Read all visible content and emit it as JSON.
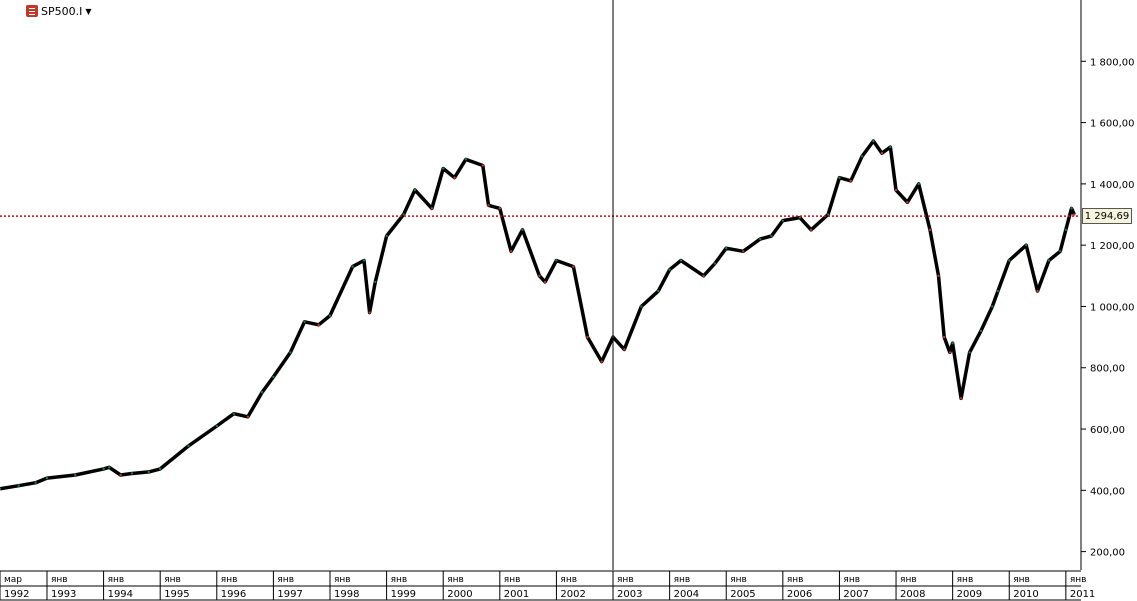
{
  "header": {
    "symbol": "SP500.I",
    "dropdown_icon": "caret-down-icon",
    "symbol_icon": "instrument-icon"
  },
  "current_price_label": "1 294,69",
  "colors": {
    "line": "#000000",
    "down": "#c0392b",
    "up": "#1e7d3a",
    "price_line": "#e00000",
    "axis": "#000000",
    "label_bg": "#f4f4dc"
  },
  "chart_data": {
    "type": "line",
    "title": "SP500.I",
    "xlabel": "",
    "ylabel": "",
    "ylim": [
      140,
      2000
    ],
    "xlim": [
      1992.17,
      2011.25
    ],
    "y_ticks": [
      200,
      400,
      600,
      800,
      1000,
      1200,
      1400,
      1600,
      1800
    ],
    "y_tick_labels": [
      "200,00",
      "400,00",
      "600,00",
      "800,00",
      "1 000,00",
      "1 200,00",
      "1 400,00",
      "1 600,00",
      "1 800,00"
    ],
    "x_month_labels": [
      "мар",
      "янв",
      "янв",
      "янв",
      "янв",
      "янв",
      "янв",
      "янв",
      "янв",
      "янв",
      "янв",
      "янв",
      "янв",
      "янв",
      "янв",
      "янв",
      "янв",
      "янв",
      "янв",
      "янв"
    ],
    "x_year_labels": [
      "1992",
      "1993",
      "1994",
      "1995",
      "1996",
      "1997",
      "1998",
      "1999",
      "2000",
      "2001",
      "2002",
      "2003",
      "2004",
      "2005",
      "2006",
      "2007",
      "2008",
      "2009",
      "2010",
      "2011"
    ],
    "current_price": 1294.69,
    "crosshair_x": 2003.0,
    "series": [
      {
        "x": [
          1992.17,
          1992.5,
          1992.8,
          1993.0,
          1993.5,
          1994.0,
          1994.1,
          1994.3,
          1994.5,
          1994.8,
          1995.0,
          1995.5,
          1996.0,
          1996.3,
          1996.55,
          1996.8,
          1997.0,
          1997.3,
          1997.55,
          1997.8,
          1998.0,
          1998.4,
          1998.6,
          1998.7,
          1998.8,
          1999.0,
          1999.3,
          1999.5,
          1999.8,
          2000.0,
          2000.2,
          2000.4,
          2000.7,
          2000.8,
          2001.0,
          2001.2,
          2001.4,
          2001.7,
          2001.8,
          2002.0,
          2002.3,
          2002.55,
          2002.8,
          2003.0,
          2003.2,
          2003.5,
          2003.8,
          2004.0,
          2004.2,
          2004.6,
          2004.8,
          2005.0,
          2005.3,
          2005.6,
          2005.8,
          2006.0,
          2006.3,
          2006.5,
          2006.8,
          2007.0,
          2007.2,
          2007.4,
          2007.6,
          2007.75,
          2007.9,
          2008.0,
          2008.2,
          2008.4,
          2008.6,
          2008.75,
          2008.85,
          2008.95,
          2009.0,
          2009.15,
          2009.3,
          2009.5,
          2009.7,
          2009.8,
          2010.0,
          2010.3,
          2010.5,
          2010.7,
          2010.9,
          2011.0,
          2011.1,
          2011.15
        ],
        "values": [
          405,
          415,
          425,
          440,
          450,
          470,
          475,
          450,
          455,
          460,
          470,
          545,
          610,
          650,
          640,
          720,
          770,
          850,
          950,
          940,
          970,
          1130,
          1150,
          980,
          1080,
          1230,
          1300,
          1380,
          1320,
          1450,
          1420,
          1480,
          1460,
          1330,
          1320,
          1180,
          1250,
          1100,
          1080,
          1150,
          1130,
          900,
          820,
          900,
          860,
          1000,
          1050,
          1120,
          1150,
          1100,
          1140,
          1190,
          1180,
          1220,
          1230,
          1280,
          1290,
          1250,
          1300,
          1420,
          1410,
          1490,
          1540,
          1500,
          1520,
          1380,
          1340,
          1400,
          1250,
          1100,
          900,
          850,
          880,
          700,
          850,
          920,
          1000,
          1050,
          1150,
          1200,
          1050,
          1150,
          1180,
          1250,
          1320,
          1300
        ]
      }
    ]
  }
}
